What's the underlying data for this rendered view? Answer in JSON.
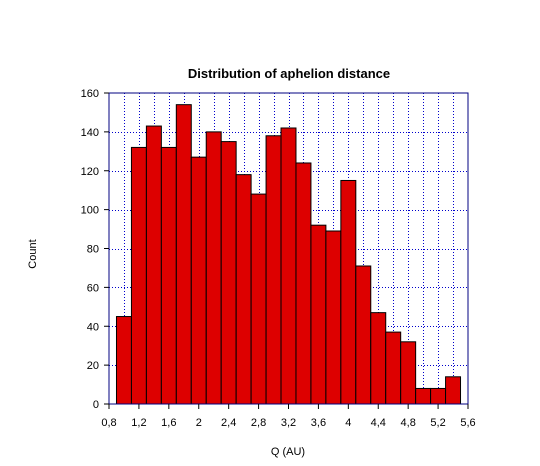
{
  "chart_data": {
    "type": "bar",
    "title": "Distribution of aphelion distance",
    "xlabel": "Q (AU)",
    "ylabel": "Count",
    "xlim": [
      0.8,
      5.6
    ],
    "ylim": [
      0,
      160
    ],
    "bin_width": 0.2,
    "x_ticks": [
      0.8,
      1.2,
      1.6,
      2.0,
      2.4,
      2.8,
      3.2,
      3.6,
      4.0,
      4.4,
      4.8,
      5.2,
      5.6
    ],
    "x_tick_labels": [
      "0,8",
      "1,2",
      "1,6",
      "2",
      "2,4",
      "2,8",
      "3,2",
      "3,6",
      "4",
      "4,4",
      "4,8",
      "5,2",
      "5,6"
    ],
    "y_ticks": [
      0,
      20,
      40,
      60,
      80,
      100,
      120,
      140,
      160
    ],
    "y_tick_labels": [
      "0",
      "20",
      "40",
      "60",
      "80",
      "100",
      "120",
      "140",
      "160"
    ],
    "grid": true,
    "bin_starts": [
      0.9,
      1.1,
      1.3,
      1.5,
      1.7,
      1.9,
      2.1,
      2.3,
      2.5,
      2.7,
      2.9,
      3.1,
      3.3,
      3.5,
      3.7,
      3.9,
      4.1,
      4.3,
      4.5,
      4.7,
      4.9,
      5.1,
      5.3
    ],
    "values": [
      45,
      132,
      143,
      132,
      154,
      127,
      140,
      135,
      118,
      108,
      138,
      142,
      124,
      92,
      89,
      115,
      71,
      47,
      37,
      32,
      8,
      8,
      14
    ],
    "colors": {
      "bar_fill": "#dd0000",
      "bar_stroke": "#000000",
      "grid": "#0000cc",
      "frame": "#000080"
    }
  }
}
